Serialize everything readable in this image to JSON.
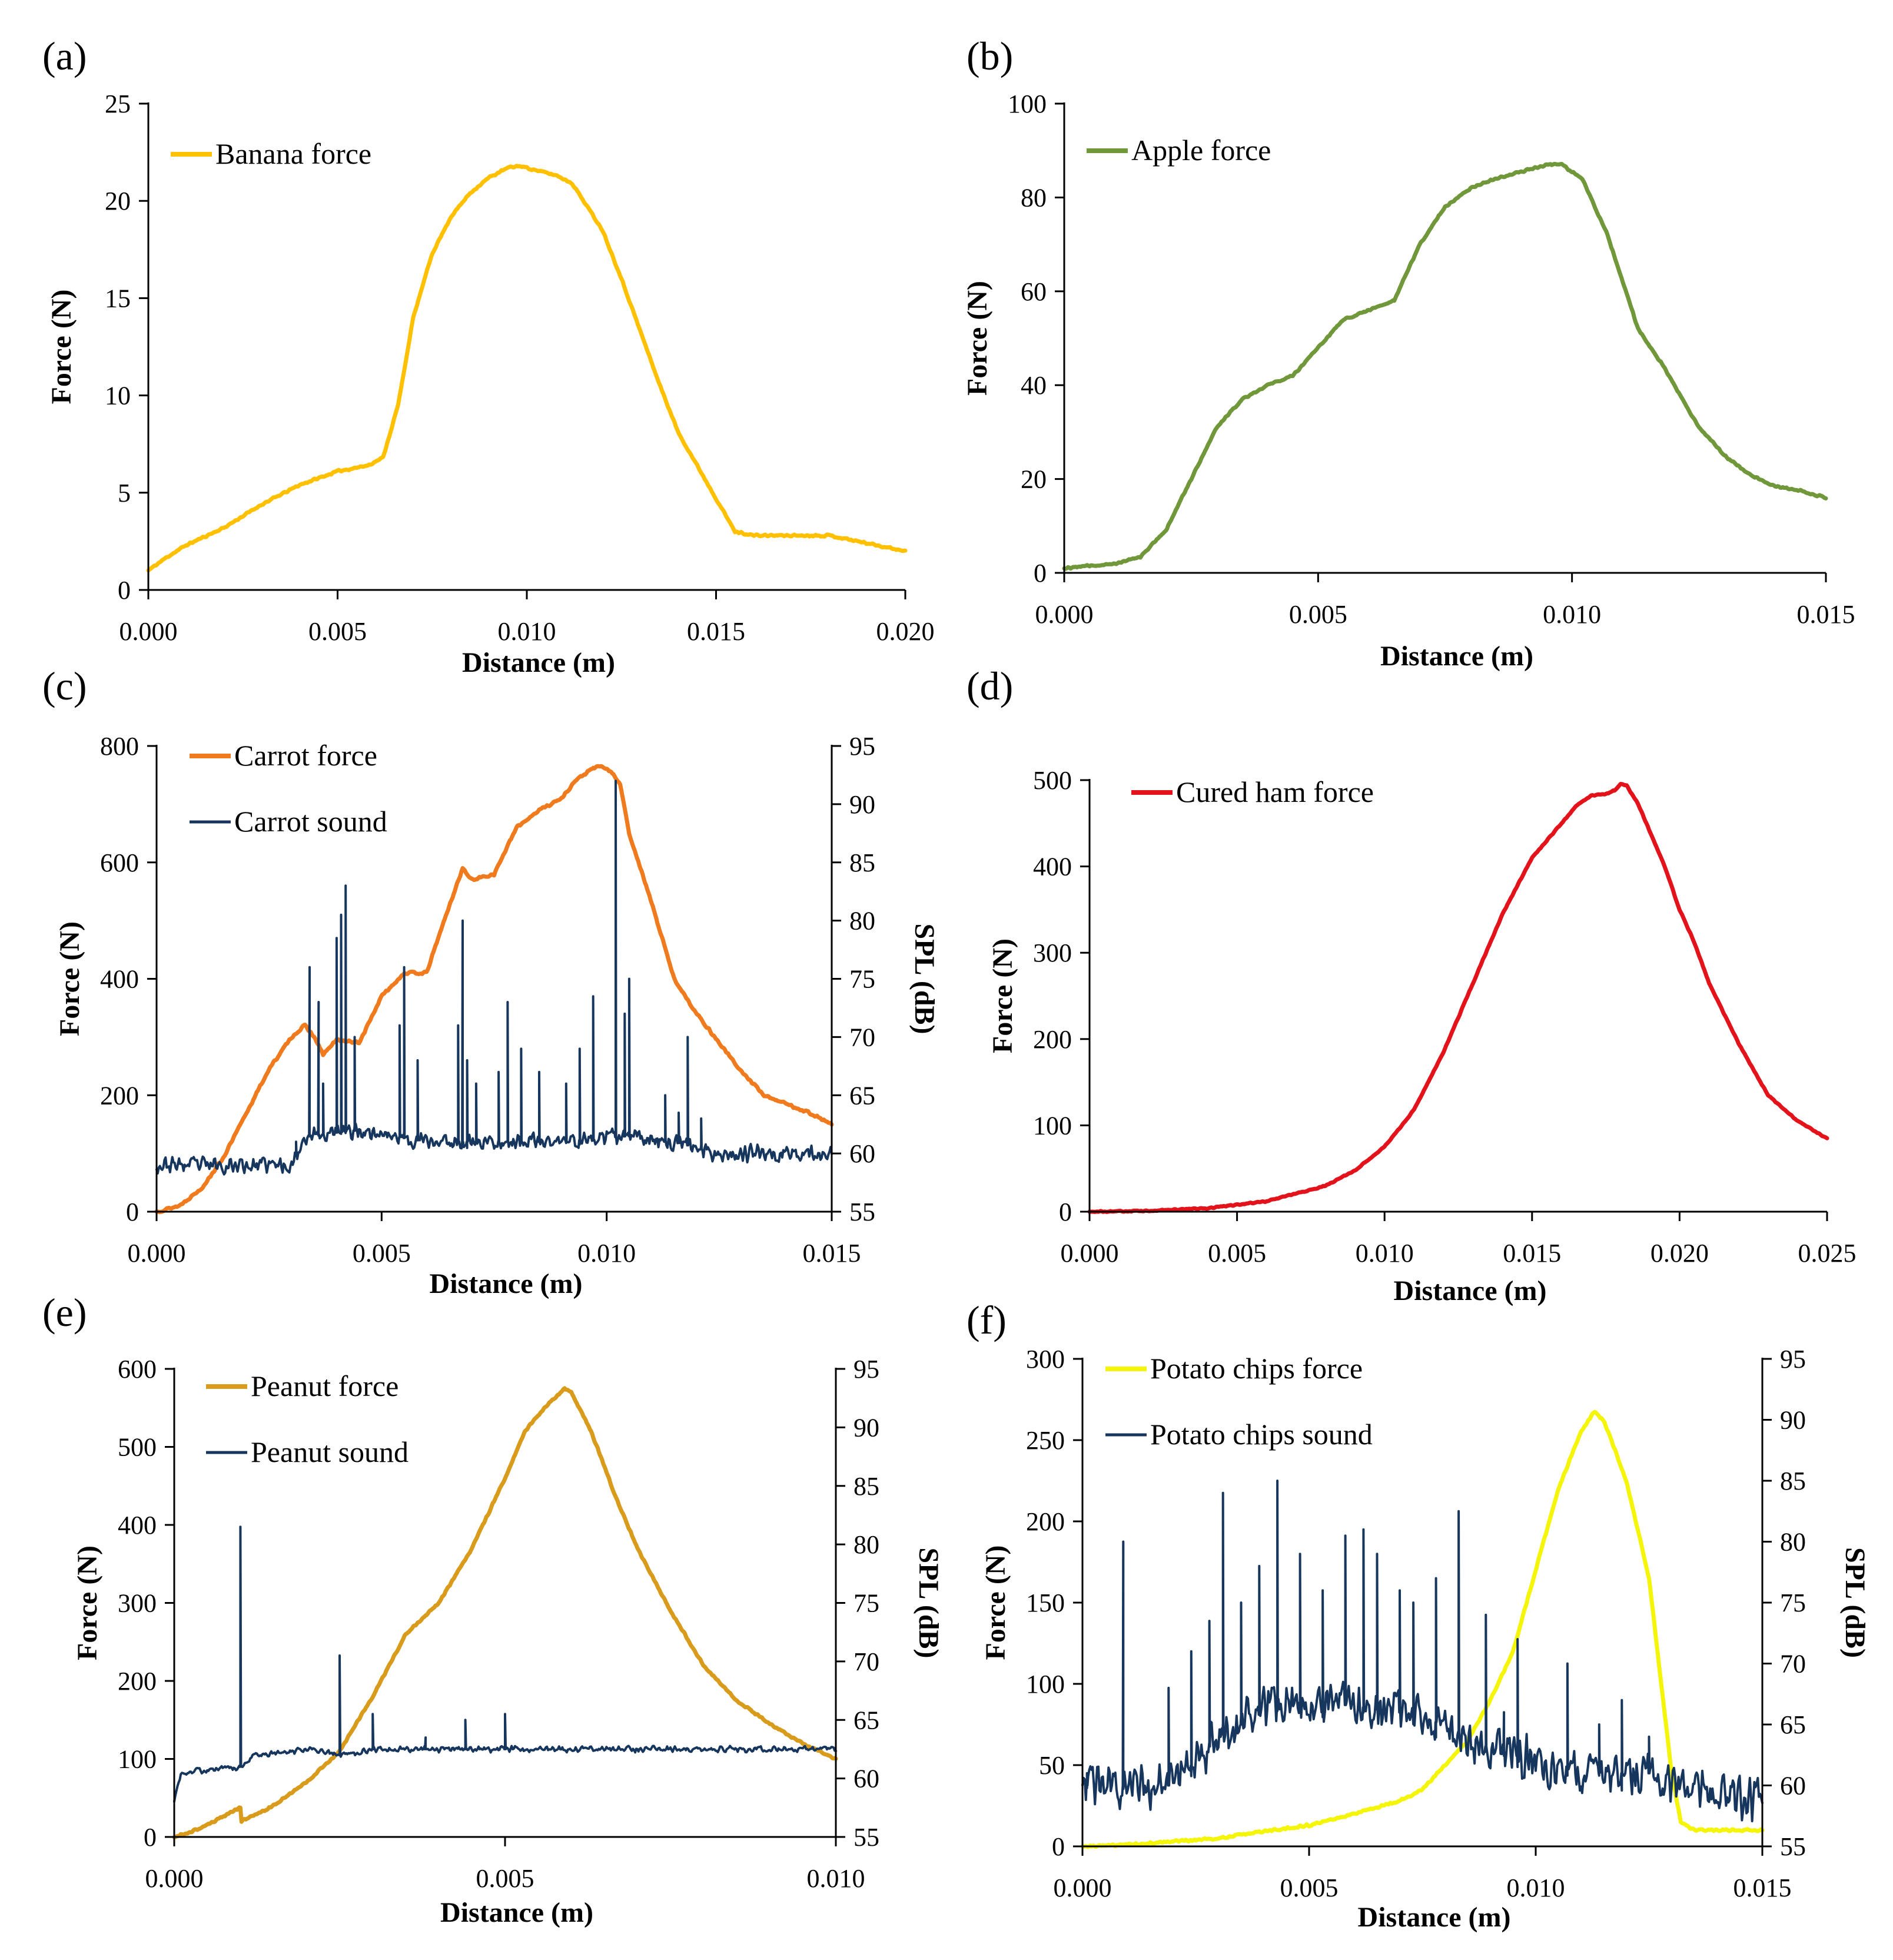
{
  "chart_data": [
    {
      "id": "a",
      "panel_label": "(a)",
      "type": "line",
      "xlabel": "Distance (m)",
      "ylabel": "Force (N)",
      "xlim": [
        0,
        0.02
      ],
      "ylim": [
        0,
        25
      ],
      "xticks": [
        "0.000",
        "0.005",
        "0.010",
        "0.015",
        "0.020"
      ],
      "yticks": [
        "0",
        "5",
        "10",
        "15",
        "20",
        "25"
      ],
      "legend_position": "top-left",
      "series": [
        {
          "name": "Banana force",
          "axis": "left",
          "color": "#FFC000",
          "noise": 0.06,
          "seed": 11,
          "x": [
            0,
            0.0005,
            0.001,
            0.002,
            0.003,
            0.004,
            0.005,
            0.0058,
            0.0062,
            0.0066,
            0.007,
            0.0075,
            0.008,
            0.0085,
            0.009,
            0.0095,
            0.0098,
            0.0102,
            0.0108,
            0.0112,
            0.012,
            0.0125,
            0.013,
            0.0135,
            0.014,
            0.0145,
            0.015,
            0.0155,
            0.016,
            0.017,
            0.018,
            0.019,
            0.0195,
            0.02
          ],
          "y": [
            1.0,
            1.7,
            2.3,
            3.2,
            4.4,
            5.4,
            6.1,
            6.4,
            6.8,
            9.5,
            14.0,
            17.3,
            19.2,
            20.4,
            21.2,
            21.7,
            21.8,
            21.6,
            21.3,
            20.9,
            18.5,
            16.0,
            13.3,
            10.6,
            8.1,
            6.4,
            4.7,
            3.0,
            2.8,
            2.8,
            2.8,
            2.4,
            2.2,
            2.0
          ]
        }
      ]
    },
    {
      "id": "b",
      "panel_label": "(b)",
      "type": "line",
      "xlabel": "Distance (m)",
      "ylabel": "Force (N)",
      "xlim": [
        0,
        0.015
      ],
      "ylim": [
        0,
        100
      ],
      "xticks": [
        "0.000",
        "0.005",
        "0.010",
        "0.015"
      ],
      "yticks": [
        "0",
        "20",
        "40",
        "60",
        "80",
        "100"
      ],
      "legend_position": "top-left",
      "series": [
        {
          "name": "Apple force",
          "axis": "left",
          "color": "#70973A",
          "noise": 0.25,
          "seed": 12,
          "x": [
            0,
            0.0005,
            0.001,
            0.0015,
            0.002,
            0.0025,
            0.003,
            0.0035,
            0.004,
            0.0045,
            0.005,
            0.0055,
            0.006,
            0.0065,
            0.007,
            0.0075,
            0.008,
            0.0085,
            0.009,
            0.0095,
            0.0098,
            0.0102,
            0.0107,
            0.011,
            0.0113,
            0.0118,
            0.0125,
            0.013,
            0.0135,
            0.014,
            0.0145,
            0.015
          ],
          "y": [
            1,
            1.5,
            2,
            3.5,
            9,
            20,
            31,
            37,
            40,
            42,
            48,
            54,
            56,
            58,
            70,
            78,
            82,
            84,
            85.5,
            87,
            87,
            84,
            72,
            62,
            52,
            44,
            31,
            25,
            21,
            18.5,
            17.5,
            16
          ]
        }
      ]
    },
    {
      "id": "c",
      "panel_label": "(c)",
      "type": "line",
      "xlabel": "Distance (m)",
      "ylabel": "Force (N)",
      "y2label": "SPL (dB)",
      "xlim": [
        0,
        0.015
      ],
      "ylim": [
        0,
        800
      ],
      "y2lim": [
        55,
        95
      ],
      "xticks": [
        "0.000",
        "0.005",
        "0.010",
        "0.015"
      ],
      "yticks": [
        "0",
        "200",
        "400",
        "600",
        "800"
      ],
      "y2ticks": [
        "55",
        "60",
        "65",
        "70",
        "75",
        "80",
        "85",
        "90",
        "95"
      ],
      "legend_position": "top-left",
      "series": [
        {
          "name": "Carrot force",
          "axis": "left",
          "color": "#F07A1E",
          "noise": 2.5,
          "seed": 13,
          "x": [
            0,
            0.0005,
            0.001,
            0.0015,
            0.002,
            0.0025,
            0.003,
            0.0033,
            0.0035,
            0.0037,
            0.004,
            0.0045,
            0.005,
            0.0055,
            0.006,
            0.0063,
            0.0068,
            0.007,
            0.0075,
            0.008,
            0.0085,
            0.009,
            0.0093,
            0.0097,
            0.0099,
            0.0101,
            0.0103,
            0.0105,
            0.011,
            0.0115,
            0.012,
            0.0125,
            0.013,
            0.0135,
            0.014,
            0.0145,
            0.015
          ],
          "y": [
            0,
            10,
            40,
            95,
            170,
            245,
            300,
            320,
            300,
            270,
            295,
            290,
            370,
            410,
            410,
            480,
            590,
            570,
            580,
            660,
            690,
            710,
            740,
            762,
            765,
            755,
            735,
            650,
            530,
            400,
            340,
            290,
            240,
            200,
            185,
            170,
            150
          ]
        },
        {
          "name": "Carrot sound",
          "axis": "right",
          "color": "#17365D",
          "noise": 0.85,
          "seed": 23,
          "x": [
            0,
            0.003,
            0.0033,
            0.0045,
            0.006,
            0.0075,
            0.009,
            0.0105,
            0.0115,
            0.012,
            0.0125,
            0.015
          ],
          "y": [
            59,
            59,
            61.5,
            62,
            61,
            61,
            61,
            61.5,
            61,
            60.5,
            60,
            60
          ],
          "spikes": [
            [
              0.0031,
              61
            ],
            [
              0.0034,
              76
            ],
            [
              0.0036,
              73
            ],
            [
              0.0037,
              66
            ],
            [
              0.004,
              78.5
            ],
            [
              0.0041,
              80.5
            ],
            [
              0.0042,
              83
            ],
            [
              0.0044,
              70
            ],
            [
              0.0054,
              71
            ],
            [
              0.0055,
              76
            ],
            [
              0.0058,
              68
            ],
            [
              0.0067,
              71
            ],
            [
              0.0068,
              80
            ],
            [
              0.0069,
              68
            ],
            [
              0.0071,
              66
            ],
            [
              0.0076,
              67
            ],
            [
              0.0078,
              73
            ],
            [
              0.0081,
              69
            ],
            [
              0.0085,
              67
            ],
            [
              0.0091,
              66
            ],
            [
              0.0094,
              69
            ],
            [
              0.0097,
              73.5
            ],
            [
              0.0102,
              92
            ],
            [
              0.0104,
              72
            ],
            [
              0.0105,
              75
            ],
            [
              0.0113,
              65
            ],
            [
              0.0116,
              63.5
            ],
            [
              0.0118,
              70
            ],
            [
              0.0121,
              63
            ]
          ]
        }
      ]
    },
    {
      "id": "d",
      "panel_label": "(d)",
      "type": "line",
      "xlabel": "Distance (m)",
      "ylabel": "Force (N)",
      "xlim": [
        0,
        0.025
      ],
      "ylim": [
        0,
        500
      ],
      "xticks": [
        "0.000",
        "0.005",
        "0.010",
        "0.015",
        "0.020",
        "0.025"
      ],
      "yticks": [
        "0",
        "100",
        "200",
        "300",
        "400",
        "500"
      ],
      "legend_position": "top-left",
      "series": [
        {
          "name": "Cured ham force",
          "axis": "left",
          "color": "#E3131B",
          "noise": 0.8,
          "seed": 14,
          "x": [
            0,
            0.002,
            0.004,
            0.006,
            0.008,
            0.009,
            0.01,
            0.011,
            0.012,
            0.013,
            0.014,
            0.015,
            0.016,
            0.0165,
            0.017,
            0.0175,
            0.0178,
            0.018,
            0.0182,
            0.0186,
            0.019,
            0.0195,
            0.02,
            0.0205,
            0.021,
            0.022,
            0.023,
            0.024,
            0.025
          ],
          "y": [
            0,
            1,
            4,
            12,
            30,
            48,
            75,
            118,
            185,
            265,
            345,
            410,
            450,
            470,
            482,
            484,
            488,
            496,
            494,
            472,
            440,
            400,
            350,
            312,
            265,
            195,
            135,
            105,
            85
          ]
        }
      ]
    },
    {
      "id": "e",
      "panel_label": "(e)",
      "type": "line",
      "xlabel": "Distance (m)",
      "ylabel": "Force (N)",
      "y2label": "SPL (dB)",
      "xlim": [
        0,
        0.01
      ],
      "ylim": [
        0,
        600
      ],
      "y2lim": [
        55,
        95
      ],
      "xticks": [
        "0.000",
        "0.005",
        "0.010"
      ],
      "yticks": [
        "0",
        "100",
        "200",
        "300",
        "400",
        "500",
        "600"
      ],
      "y2ticks": [
        "55",
        "60",
        "65",
        "70",
        "75",
        "80",
        "85",
        "90",
        "95"
      ],
      "legend_position": "top-left",
      "series": [
        {
          "name": "Peanut force",
          "axis": "left",
          "color": "#D89B1C",
          "noise": 1.5,
          "seed": 15,
          "x": [
            0,
            0.0003,
            0.0006,
            0.001,
            0.00101,
            0.0014,
            0.002,
            0.0025,
            0.003,
            0.0035,
            0.004,
            0.0045,
            0.005,
            0.0053,
            0.0056,
            0.0059,
            0.006,
            0.0063,
            0.0067,
            0.007,
            0.0075,
            0.008,
            0.0085,
            0.009,
            0.0095,
            0.01
          ],
          "y": [
            0,
            8,
            20,
            38,
            20,
            35,
            70,
            110,
            180,
            260,
            300,
            370,
            460,
            520,
            550,
            575,
            570,
            520,
            430,
            370,
            290,
            220,
            175,
            145,
            120,
            100
          ]
        },
        {
          "name": "Peanut sound",
          "axis": "right",
          "color": "#17365D",
          "noise": 0.3,
          "seed": 25,
          "x": [
            0,
            0.0001,
            0.001,
            0.0012,
            0.002,
            0.0025,
            0.003,
            0.005,
            0.007,
            0.009,
            0.01
          ],
          "y": [
            58,
            60.5,
            61,
            62,
            62.5,
            62,
            62.5,
            62.5,
            62.5,
            62.5,
            62.5
          ],
          "spikes": [
            [
              0.001,
              81.5
            ],
            [
              0.0025,
              70.5
            ],
            [
              0.003,
              65.5
            ],
            [
              0.0038,
              63.5
            ],
            [
              0.0044,
              65
            ],
            [
              0.005,
              65.5
            ]
          ]
        }
      ]
    },
    {
      "id": "f",
      "panel_label": "(f)",
      "type": "line",
      "xlabel": "Distance (m)",
      "ylabel": "Force (N)",
      "y2label": "SPL (dB)",
      "xlim": [
        0,
        0.015
      ],
      "ylim": [
        0,
        300
      ],
      "y2lim": [
        55,
        95
      ],
      "xticks": [
        "0.000",
        "0.005",
        "0.010",
        "0.015"
      ],
      "yticks": [
        "0",
        "50",
        "100",
        "150",
        "200",
        "250",
        "300"
      ],
      "y2ticks": [
        "55",
        "60",
        "65",
        "70",
        "75",
        "80",
        "85",
        "90",
        "95"
      ],
      "legend_position": "top-left",
      "series": [
        {
          "name": "Potato chips force",
          "axis": "left",
          "color": "#F5F50A",
          "noise": 0.8,
          "seed": 16,
          "x": [
            0,
            0.001,
            0.002,
            0.003,
            0.004,
            0.005,
            0.006,
            0.007,
            0.0075,
            0.008,
            0.0085,
            0.009,
            0.0095,
            0.01,
            0.0105,
            0.011,
            0.0113,
            0.0115,
            0.012,
            0.0125,
            0.013,
            0.0132,
            0.0135,
            0.014,
            0.015
          ],
          "y": [
            0,
            1,
            3,
            5,
            9,
            13,
            20,
            28,
            35,
            50,
            65,
            90,
            120,
            170,
            220,
            255,
            268,
            262,
            225,
            165,
            45,
            15,
            10,
            10,
            10
          ]
        },
        {
          "name": "Potato chips sound",
          "axis": "right",
          "color": "#17365D",
          "noise": 2.2,
          "seed": 26,
          "x": [
            0,
            0.001,
            0.002,
            0.0025,
            0.003,
            0.004,
            0.005,
            0.006,
            0.007,
            0.008,
            0.009,
            0.0095,
            0.01,
            0.011,
            0.012,
            0.0125,
            0.013,
            0.0135,
            0.014,
            0.015
          ],
          "y": [
            60,
            60,
            60,
            62,
            64,
            66,
            67,
            66.5,
            66,
            65,
            63,
            62.5,
            62,
            61,
            61,
            61,
            60.5,
            59.5,
            59,
            59
          ],
          "spikes": [
            [
              0.0001,
              61
            ],
            [
              0.0009,
              80
            ],
            [
              0.0019,
              68
            ],
            [
              0.0024,
              71
            ],
            [
              0.0028,
              73.5
            ],
            [
              0.0031,
              84
            ],
            [
              0.0035,
              75
            ],
            [
              0.0039,
              78
            ],
            [
              0.0043,
              85
            ],
            [
              0.0048,
              79
            ],
            [
              0.0053,
              76
            ],
            [
              0.0058,
              80.5
            ],
            [
              0.0062,
              81
            ],
            [
              0.0065,
              79
            ],
            [
              0.007,
              76
            ],
            [
              0.0073,
              75
            ],
            [
              0.0078,
              77
            ],
            [
              0.0083,
              82.5
            ],
            [
              0.0089,
              74
            ],
            [
              0.0093,
              66
            ],
            [
              0.0096,
              72
            ],
            [
              0.0107,
              70
            ],
            [
              0.0114,
              65
            ],
            [
              0.0119,
              67
            ],
            [
              0.0125,
              64
            ]
          ]
        }
      ]
    }
  ]
}
